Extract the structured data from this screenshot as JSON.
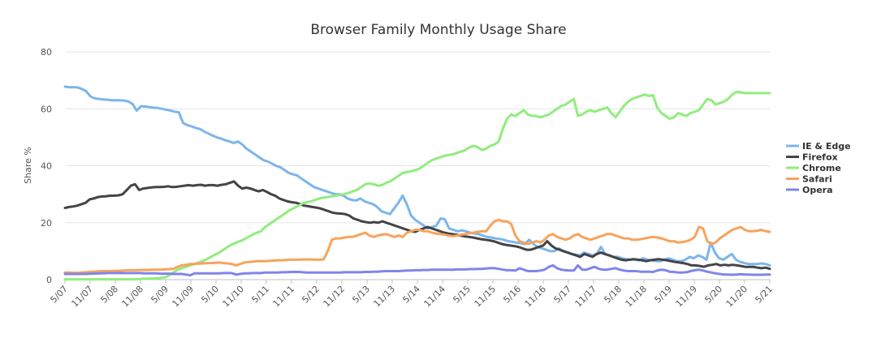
{
  "chart_data": {
    "type": "line",
    "title": "Browser Family Monthly Usage Share",
    "xlabel": "",
    "ylabel": "Share %",
    "ylim": [
      0,
      80
    ],
    "yticks": [
      0,
      20,
      40,
      60,
      80
    ],
    "grid": "horizontal",
    "legend_position": "right",
    "x_start": "2007-05",
    "x_end": "2021-05",
    "xtick_labels": [
      "5/07",
      "11/07",
      "5/08",
      "11/08",
      "5/09",
      "11/09",
      "5/10",
      "11/10",
      "5/11",
      "11/11",
      "5/12",
      "11/12",
      "5/13",
      "11/13",
      "5/14",
      "11/14",
      "5/15",
      "11/15",
      "5/16",
      "11/16",
      "5/17",
      "11/17",
      "5/18",
      "11/18",
      "5/19",
      "11/19",
      "5/20",
      "11/20",
      "5/21"
    ],
    "series": [
      {
        "name": "IE & Edge",
        "color": "#7cb5ec",
        "values": [
          67.8,
          67.6,
          67.6,
          67.5,
          67.0,
          66.2,
          64.4,
          63.7,
          63.5,
          63.3,
          63.2,
          63.0,
          63.0,
          63.0,
          62.9,
          62.6,
          61.7,
          59.4,
          60.9,
          60.8,
          60.6,
          60.4,
          60.3,
          60.0,
          59.7,
          59.4,
          59.0,
          58.8,
          55.0,
          54.3,
          53.8,
          53.3,
          52.9,
          52.0,
          51.3,
          50.6,
          50.0,
          49.5,
          49.0,
          48.5,
          48.0,
          48.5,
          47.5,
          46.0,
          45.0,
          44.0,
          43.0,
          42.0,
          41.5,
          40.8,
          40.0,
          39.5,
          38.5,
          37.5,
          37.0,
          36.6,
          35.5,
          34.5,
          33.5,
          32.5,
          32.0,
          31.5,
          31.0,
          30.5,
          30.0,
          30.0,
          29.5,
          28.5,
          28.0,
          27.8,
          28.5,
          27.5,
          27.0,
          26.5,
          25.5,
          24.0,
          23.5,
          23.0,
          25.0,
          27.0,
          29.5,
          26.5,
          22.5,
          21.0,
          20.0,
          19.0,
          18.0,
          18.5,
          19.0,
          21.5,
          21.2,
          18.0,
          17.5,
          17.0,
          17.3,
          17.0,
          16.5,
          16.2,
          16.0,
          15.5,
          15.0,
          14.8,
          14.5,
          14.3,
          14.0,
          13.5,
          13.3,
          13.0,
          12.8,
          12.5,
          14.0,
          12.5,
          11.5,
          11.0,
          10.5,
          10.0,
          10.0,
          11.0,
          10.0,
          9.5,
          9.0,
          8.8,
          8.5,
          9.5,
          9.0,
          8.5,
          9.0,
          11.5,
          9.0,
          8.5,
          8.0,
          8.0,
          7.5,
          7.2,
          7.0,
          7.0,
          6.8,
          7.5,
          7.0,
          6.8,
          6.5,
          6.5,
          7.0,
          7.5,
          7.0,
          6.5,
          6.5,
          7.0,
          8.0,
          7.5,
          8.5,
          8.0,
          7.0,
          13.0,
          9.5,
          7.5,
          7.0,
          8.0,
          9.0,
          7.0,
          6.2,
          5.8,
          5.5,
          5.5,
          5.5,
          5.7,
          5.5,
          5.0
        ]
      },
      {
        "name": "Firefox",
        "color": "#434348",
        "values": [
          25.2,
          25.5,
          25.7,
          26.0,
          26.5,
          27.0,
          28.2,
          28.5,
          29.0,
          29.2,
          29.3,
          29.5,
          29.5,
          29.6,
          30.0,
          31.5,
          33.0,
          33.5,
          31.5,
          32.0,
          32.2,
          32.4,
          32.5,
          32.5,
          32.6,
          32.8,
          32.5,
          32.6,
          32.8,
          33.0,
          33.2,
          33.0,
          33.2,
          33.3,
          33.0,
          33.2,
          33.2,
          33.0,
          33.3,
          33.5,
          34.0,
          34.5,
          33.0,
          32.0,
          32.3,
          32.0,
          31.5,
          31.0,
          31.5,
          30.8,
          30.0,
          29.5,
          28.5,
          28.0,
          27.5,
          27.2,
          27.0,
          26.6,
          26.0,
          25.8,
          25.5,
          25.3,
          25.0,
          24.5,
          24.0,
          23.5,
          23.3,
          23.2,
          23.0,
          22.5,
          21.5,
          21.0,
          20.5,
          20.2,
          20.0,
          20.2,
          20.0,
          20.5,
          20.0,
          19.5,
          19.0,
          18.5,
          18.0,
          17.5,
          17.0,
          16.8,
          17.5,
          18.0,
          18.5,
          18.0,
          17.5,
          17.0,
          16.5,
          16.2,
          16.0,
          15.8,
          15.5,
          15.2,
          15.0,
          14.8,
          14.5,
          14.2,
          14.0,
          13.8,
          13.5,
          13.0,
          12.5,
          12.2,
          12.0,
          11.8,
          11.5,
          11.0,
          10.5,
          10.5,
          11.0,
          11.5,
          12.0,
          13.5,
          12.0,
          11.0,
          10.5,
          10.0,
          9.5,
          9.0,
          8.5,
          8.0,
          9.0,
          8.5,
          8.0,
          9.0,
          9.5,
          9.0,
          8.5,
          8.0,
          7.5,
          7.0,
          6.8,
          7.0,
          7.2,
          7.0,
          6.8,
          6.5,
          6.8,
          7.0,
          7.2,
          7.0,
          6.8,
          6.5,
          6.2,
          6.0,
          5.8,
          5.5,
          5.0,
          5.0,
          4.8,
          4.5,
          5.0,
          5.2,
          5.5,
          5.0,
          5.2,
          5.0,
          5.2,
          5.0,
          4.8,
          4.5,
          4.5,
          4.5,
          4.2,
          4.0,
          4.2,
          3.8
        ]
      },
      {
        "name": "Chrome",
        "color": "#90ed7d",
        "values": [
          0.1,
          0.1,
          0.1,
          0.1,
          0.1,
          0.1,
          0.1,
          0.1,
          0.1,
          0.1,
          0.1,
          0.1,
          0.1,
          0.1,
          0.1,
          0.1,
          0.1,
          0.1,
          0.2,
          0.3,
          0.3,
          0.4,
          0.5,
          0.6,
          0.8,
          1.5,
          2.5,
          3.5,
          4.0,
          4.5,
          5.0,
          5.5,
          6.0,
          6.5,
          7.2,
          8.0,
          8.8,
          9.5,
          10.5,
          11.5,
          12.3,
          13.0,
          13.5,
          14.2,
          15.0,
          15.8,
          16.5,
          17.0,
          18.5,
          19.5,
          20.5,
          21.5,
          22.5,
          23.5,
          24.5,
          25.2,
          26.0,
          26.8,
          27.2,
          27.5,
          28.0,
          28.5,
          28.8,
          29.0,
          29.3,
          29.5,
          29.8,
          30.0,
          30.5,
          31.0,
          31.5,
          32.5,
          33.5,
          33.8,
          33.5,
          33.0,
          33.2,
          34.0,
          34.5,
          35.5,
          36.5,
          37.5,
          37.8,
          38.0,
          38.5,
          39.0,
          40.0,
          41.0,
          42.0,
          42.5,
          43.0,
          43.5,
          43.8,
          44.0,
          44.5,
          45.0,
          45.5,
          46.5,
          47.0,
          46.5,
          45.5,
          46.0,
          47.0,
          47.5,
          48.5,
          53.0,
          56.5,
          58.0,
          57.5,
          58.5,
          59.5,
          58.0,
          57.5,
          57.5,
          57.0,
          57.5,
          58.0,
          59.0,
          60.0,
          61.0,
          61.5,
          62.5,
          63.5,
          57.5,
          58.0,
          59.0,
          59.5,
          59.0,
          59.5,
          60.0,
          60.5,
          58.5,
          57.0,
          59.0,
          61.0,
          62.5,
          63.5,
          64.0,
          64.5,
          65.0,
          64.5,
          64.8,
          60.5,
          58.5,
          57.5,
          56.5,
          57.0,
          58.5,
          58.0,
          57.5,
          58.5,
          59.0,
          59.5,
          61.5,
          63.5,
          63.0,
          61.5,
          62.0,
          62.5,
          63.5,
          65.0,
          66.0,
          65.8,
          65.5,
          65.5,
          65.5,
          65.5,
          65.5,
          65.5,
          65.5
        ]
      },
      {
        "name": "Safari",
        "color": "#f7a35c",
        "values": [
          2.5,
          2.5,
          2.4,
          2.4,
          2.5,
          2.6,
          2.7,
          2.8,
          2.9,
          3.0,
          3.0,
          3.0,
          3.1,
          3.1,
          3.2,
          3.3,
          3.3,
          3.3,
          3.4,
          3.4,
          3.4,
          3.5,
          3.5,
          3.5,
          3.6,
          3.7,
          3.8,
          4.5,
          5.0,
          5.2,
          5.5,
          5.5,
          5.6,
          5.7,
          5.8,
          5.8,
          5.9,
          6.0,
          5.8,
          5.7,
          5.5,
          5.0,
          5.5,
          6.0,
          6.2,
          6.3,
          6.5,
          6.5,
          6.5,
          6.6,
          6.7,
          6.8,
          6.8,
          6.9,
          7.0,
          7.0,
          7.0,
          7.1,
          7.1,
          7.1,
          7.0,
          7.0,
          7.1,
          10.0,
          14.0,
          14.5,
          14.5,
          14.8,
          15.0,
          15.0,
          15.5,
          16.0,
          16.5,
          15.5,
          15.0,
          15.5,
          15.8,
          16.0,
          15.5,
          15.0,
          15.5,
          15.0,
          16.5,
          17.0,
          17.5,
          17.5,
          17.0,
          17.0,
          16.5,
          16.2,
          16.0,
          15.8,
          15.5,
          15.3,
          15.5,
          15.8,
          16.0,
          16.3,
          16.5,
          16.8,
          17.0,
          17.0,
          19.0,
          20.5,
          21.0,
          20.5,
          20.5,
          19.5,
          15.5,
          13.5,
          13.0,
          12.5,
          13.0,
          13.5,
          13.0,
          14.0,
          15.5,
          16.0,
          15.0,
          14.5,
          14.0,
          14.5,
          15.5,
          16.0,
          15.0,
          14.5,
          14.0,
          14.5,
          15.0,
          15.5,
          16.0,
          16.0,
          15.5,
          15.0,
          14.5,
          14.5,
          14.0,
          14.0,
          14.2,
          14.5,
          14.8,
          15.0,
          14.8,
          14.5,
          14.0,
          13.5,
          13.5,
          13.0,
          13.2,
          13.5,
          14.0,
          15.0,
          18.5,
          18.0,
          13.5,
          12.5,
          13.0,
          14.5,
          15.5,
          16.5,
          17.5,
          18.0,
          18.5,
          17.5,
          17.0,
          17.0,
          17.2,
          17.5,
          17.0,
          16.8
        ]
      },
      {
        "name": "Opera",
        "color": "#8085e9",
        "values": [
          2.0,
          2.0,
          2.0,
          2.0,
          2.0,
          2.0,
          2.1,
          2.1,
          2.2,
          2.2,
          2.3,
          2.3,
          2.3,
          2.3,
          2.3,
          2.3,
          2.3,
          2.3,
          2.3,
          2.2,
          2.2,
          2.2,
          2.2,
          2.1,
          2.1,
          2.1,
          2.0,
          2.0,
          2.0,
          1.8,
          1.5,
          2.2,
          2.2,
          2.2,
          2.2,
          2.2,
          2.2,
          2.2,
          2.3,
          2.3,
          2.3,
          1.8,
          2.0,
          2.2,
          2.2,
          2.3,
          2.3,
          2.3,
          2.5,
          2.5,
          2.5,
          2.5,
          2.6,
          2.6,
          2.7,
          2.7,
          2.7,
          2.6,
          2.5,
          2.5,
          2.5,
          2.5,
          2.5,
          2.5,
          2.5,
          2.5,
          2.5,
          2.6,
          2.6,
          2.6,
          2.6,
          2.6,
          2.7,
          2.7,
          2.8,
          2.8,
          2.9,
          3.0,
          3.0,
          3.0,
          3.0,
          3.1,
          3.2,
          3.2,
          3.3,
          3.3,
          3.4,
          3.4,
          3.5,
          3.5,
          3.5,
          3.5,
          3.5,
          3.5,
          3.6,
          3.6,
          3.6,
          3.7,
          3.7,
          3.8,
          3.8,
          3.9,
          4.0,
          4.0,
          3.8,
          3.5,
          3.3,
          3.3,
          3.2,
          4.0,
          3.5,
          3.0,
          3.0,
          3.0,
          3.2,
          3.5,
          4.5,
          5.0,
          4.0,
          3.5,
          3.3,
          3.2,
          3.2,
          5.0,
          3.5,
          3.5,
          4.0,
          4.5,
          3.8,
          3.5,
          3.5,
          3.8,
          4.0,
          3.5,
          3.2,
          3.0,
          3.0,
          3.0,
          2.8,
          2.8,
          2.8,
          2.7,
          3.2,
          3.5,
          3.3,
          2.8,
          2.7,
          2.5,
          2.5,
          2.6,
          3.0,
          3.3,
          3.5,
          3.2,
          2.8,
          2.5,
          2.2,
          2.0,
          1.8,
          1.8,
          1.7,
          1.8,
          1.9,
          1.8,
          1.8,
          1.7,
          1.7,
          1.7,
          1.8,
          1.8
        ]
      }
    ]
  }
}
